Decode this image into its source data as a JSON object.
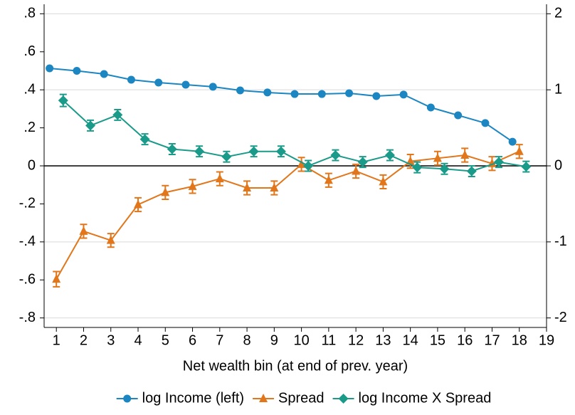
{
  "chart_data": {
    "type": "line",
    "xlabel": "Net wealth bin (at end of prev. year)",
    "xlim": [
      0.55,
      19
    ],
    "xticks": [
      1,
      2,
      3,
      4,
      5,
      6,
      7,
      8,
      9,
      10,
      11,
      12,
      13,
      14,
      15,
      16,
      17,
      18,
      19
    ],
    "ylim": [
      -0.85,
      0.85
    ],
    "yticks": [
      {
        "value": -0.8,
        "label": "-.8"
      },
      {
        "value": -0.6,
        "label": "-.6"
      },
      {
        "value": -0.4,
        "label": "-.4"
      },
      {
        "value": -0.2,
        "label": "-.2"
      },
      0,
      {
        "value": 0.2,
        "label": ".2"
      },
      {
        "value": 0.4,
        "label": ".4"
      },
      {
        "value": 0.6,
        "label": ".6"
      },
      {
        "value": 0.8,
        "label": ".8"
      }
    ],
    "y2lim": [
      -2.125,
      2.125
    ],
    "y2ticks": [
      -2,
      -1,
      0,
      1,
      2
    ],
    "grid": "y2",
    "zero_line": true,
    "legend": "bottom",
    "series": [
      {
        "name": "log Income (left)",
        "color": "#1b86c1",
        "marker": "circle",
        "x": [
          0.75,
          1.75,
          2.75,
          3.75,
          4.75,
          5.75,
          6.75,
          7.75,
          8.75,
          9.75,
          10.75,
          11.75,
          12.75,
          13.75,
          14.75,
          15.75,
          16.75,
          17.75
        ],
        "values": [
          0.513,
          0.5,
          0.483,
          0.453,
          0.438,
          0.427,
          0.416,
          0.397,
          0.386,
          0.378,
          0.378,
          0.382,
          0.367,
          0.375,
          0.307,
          0.266,
          0.225,
          0.127
        ]
      },
      {
        "name": "Spread",
        "color": "#e2761b",
        "marker": "triangle",
        "axis": "y2",
        "x": [
          1,
          2,
          3,
          4,
          5,
          6,
          7,
          8,
          9,
          10,
          11,
          12,
          13,
          14,
          15,
          16,
          17,
          18
        ],
        "values": [
          -1.49,
          -0.86,
          -0.98,
          -0.51,
          -0.35,
          -0.27,
          -0.17,
          -0.29,
          -0.29,
          0.02,
          -0.19,
          -0.07,
          -0.21,
          0.06,
          0.1,
          0.14,
          0.03,
          0.19
        ],
        "errors": [
          0.1,
          0.09,
          0.09,
          0.09,
          0.09,
          0.09,
          0.09,
          0.09,
          0.09,
          0.09,
          0.09,
          0.09,
          0.09,
          0.09,
          0.09,
          0.09,
          0.09,
          0.09
        ]
      },
      {
        "name": "log Income X Spread",
        "color": "#1a9a89",
        "marker": "diamond",
        "axis": "y2",
        "x": [
          1.25,
          2.25,
          3.25,
          4.25,
          5.25,
          6.25,
          7.25,
          8.25,
          9.25,
          10.25,
          11.25,
          12.25,
          13.25,
          14.25,
          15.25,
          16.25,
          17.25,
          18.25
        ],
        "values": [
          0.86,
          0.53,
          0.67,
          0.35,
          0.22,
          0.19,
          0.12,
          0.19,
          0.19,
          0.0,
          0.14,
          0.05,
          0.14,
          -0.02,
          -0.04,
          -0.07,
          0.05,
          -0.01
        ],
        "errors": [
          0.08,
          0.07,
          0.07,
          0.07,
          0.07,
          0.07,
          0.07,
          0.07,
          0.07,
          0.07,
          0.07,
          0.07,
          0.07,
          0.07,
          0.07,
          0.07,
          0.07,
          0.07
        ]
      }
    ]
  }
}
